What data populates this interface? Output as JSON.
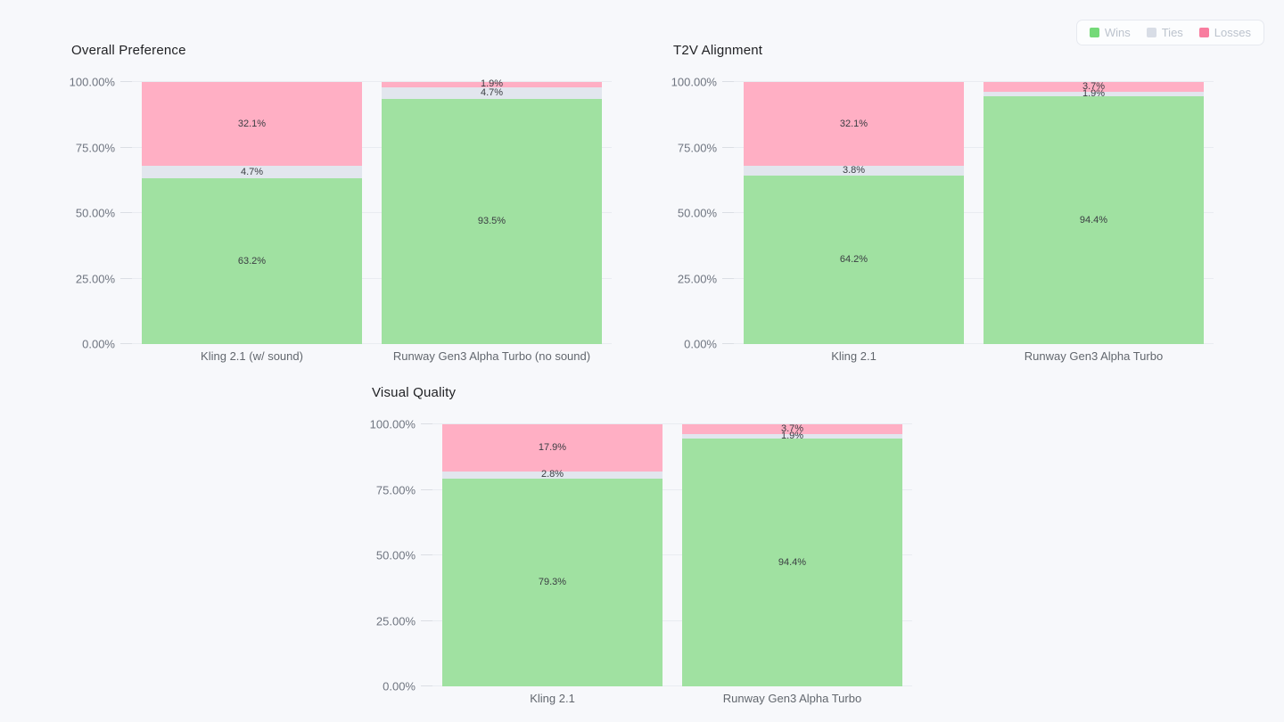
{
  "page": {
    "background": "#f7f8fb"
  },
  "legend": {
    "items": [
      {
        "label": "Wins",
        "color": "#74d978"
      },
      {
        "label": "Ties",
        "color": "#d8dde6"
      },
      {
        "label": "Losses",
        "color": "#f87d9f"
      }
    ]
  },
  "chart_data": [
    {
      "type": "bar",
      "stacked": true,
      "title": "Overall Preference",
      "categories": [
        "Kling 2.1 (w/ sound)",
        "Runway Gen3 Alpha Turbo (no sound)"
      ],
      "series": [
        {
          "name": "Wins",
          "color": "#a0e1a1",
          "values": [
            63.2,
            93.5
          ]
        },
        {
          "name": "Ties",
          "color": "#e2e6ee",
          "values": [
            4.7,
            4.7
          ]
        },
        {
          "name": "Losses",
          "color": "#ffafc4",
          "values": [
            32.1,
            1.9
          ]
        }
      ],
      "ylabel": "",
      "xlabel": "",
      "ylim": [
        0,
        100
      ],
      "yticks": [
        "0.00%",
        "25.00%",
        "50.00%",
        "75.00%",
        "100.00%"
      ],
      "grid": true,
      "value_suffix": "%",
      "legend_position": "top-right-shared"
    },
    {
      "type": "bar",
      "stacked": true,
      "title": "T2V Alignment",
      "categories": [
        "Kling 2.1",
        "Runway Gen3 Alpha Turbo"
      ],
      "series": [
        {
          "name": "Wins",
          "color": "#a0e1a1",
          "values": [
            64.2,
            94.4
          ]
        },
        {
          "name": "Ties",
          "color": "#e2e6ee",
          "values": [
            3.8,
            1.9
          ]
        },
        {
          "name": "Losses",
          "color": "#ffafc4",
          "values": [
            32.1,
            3.7
          ]
        }
      ],
      "ylabel": "",
      "xlabel": "",
      "ylim": [
        0,
        100
      ],
      "yticks": [
        "0.00%",
        "25.00%",
        "50.00%",
        "75.00%",
        "100.00%"
      ],
      "grid": true,
      "value_suffix": "%",
      "legend_position": "top-right-shared"
    },
    {
      "type": "bar",
      "stacked": true,
      "title": "Visual Quality",
      "categories": [
        "Kling 2.1",
        "Runway Gen3 Alpha Turbo"
      ],
      "series": [
        {
          "name": "Wins",
          "color": "#a0e1a1",
          "values": [
            79.3,
            94.4
          ]
        },
        {
          "name": "Ties",
          "color": "#e2e6ee",
          "values": [
            2.8,
            1.9
          ]
        },
        {
          "name": "Losses",
          "color": "#ffafc4",
          "values": [
            17.9,
            3.7
          ]
        }
      ],
      "ylabel": "",
      "xlabel": "",
      "ylim": [
        0,
        100
      ],
      "yticks": [
        "0.00%",
        "25.00%",
        "50.00%",
        "75.00%",
        "100.00%"
      ],
      "grid": true,
      "value_suffix": "%",
      "legend_position": "top-right-shared"
    }
  ]
}
